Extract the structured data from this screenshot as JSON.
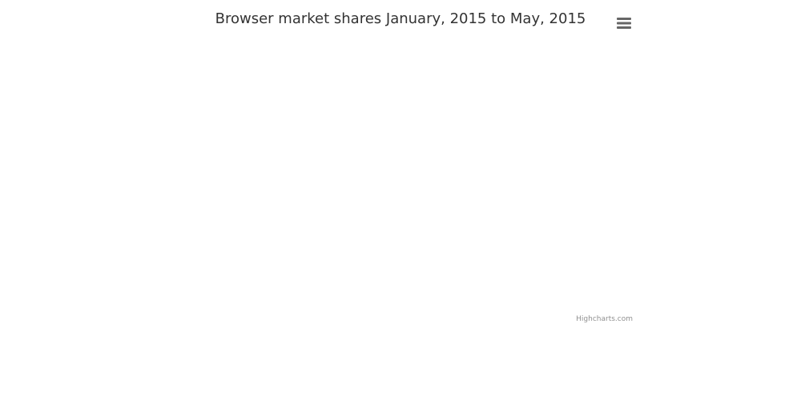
{
  "chart_data": {
    "type": "pie",
    "title": "Browser market shares January, 2015 to May, 2015",
    "subtitle": "",
    "series": []
  },
  "credits": {
    "label": "Highcharts.com"
  },
  "menu": {
    "icon": "hamburger-menu-icon"
  },
  "colors": {
    "title": "#333333",
    "menu_icon": "#666666",
    "credits": "#909090"
  }
}
